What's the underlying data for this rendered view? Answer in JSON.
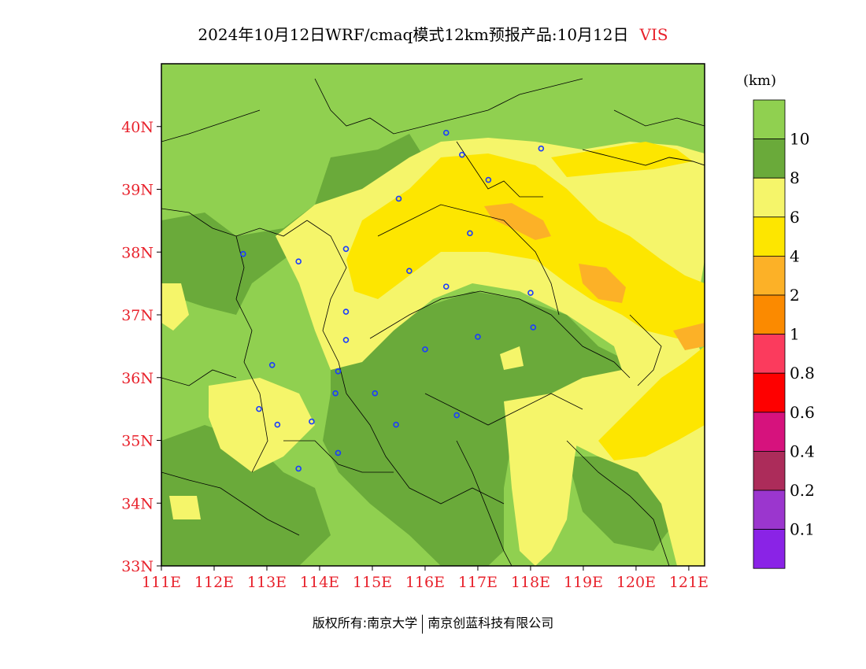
{
  "title": {
    "main": "2024年10月12日WRF/cmaq模式12km预报产品:10月12日",
    "variable": "VIS"
  },
  "axes": {
    "x_ticks": [
      "111E",
      "112E",
      "113E",
      "114E",
      "115E",
      "116E",
      "117E",
      "118E",
      "119E",
      "120E",
      "121E"
    ],
    "y_ticks": [
      "33N",
      "34N",
      "35N",
      "36N",
      "37N",
      "38N",
      "39N",
      "40N"
    ],
    "lon_range": [
      111,
      121.3
    ],
    "lat_range": [
      33,
      41
    ]
  },
  "legend": {
    "unit": "(km)",
    "entries": [
      {
        "color": "#90d050"
      },
      {
        "color": "#6aaa3a",
        "label": "10"
      },
      {
        "color": "#f5f56a",
        "label": "8"
      },
      {
        "color": "#fde600",
        "label": "6"
      },
      {
        "color": "#fcb127",
        "label": "4"
      },
      {
        "color": "#fb8a00",
        "label": "2"
      },
      {
        "color": "#fb3b5d",
        "label": "1"
      },
      {
        "color": "#fe0000",
        "label": "0.8"
      },
      {
        "color": "#d6127d",
        "label": "0.6"
      },
      {
        "color": "#ac2c5a",
        "label": "0.4"
      },
      {
        "color": "#9b36ce",
        "label": "0.2"
      },
      {
        "color": "#8a23e6",
        "label": "0.1"
      }
    ]
  },
  "cities": [
    [
      116.4,
      39.9
    ],
    [
      116.7,
      39.55
    ],
    [
      117.2,
      39.15
    ],
    [
      118.2,
      39.65
    ],
    [
      115.5,
      38.85
    ],
    [
      116.85,
      38.3
    ],
    [
      114.5,
      38.05
    ],
    [
      112.55,
      37.97
    ],
    [
      113.6,
      37.85
    ],
    [
      115.7,
      37.7
    ],
    [
      116.4,
      37.45
    ],
    [
      118.0,
      37.35
    ],
    [
      114.5,
      37.05
    ],
    [
      118.05,
      36.8
    ],
    [
      117.0,
      36.65
    ],
    [
      114.5,
      36.6
    ],
    [
      116.0,
      36.45
    ],
    [
      113.1,
      36.2
    ],
    [
      114.35,
      36.1
    ],
    [
      114.3,
      35.75
    ],
    [
      115.05,
      35.75
    ],
    [
      112.85,
      35.5
    ],
    [
      113.2,
      35.25
    ],
    [
      113.85,
      35.3
    ],
    [
      115.45,
      35.25
    ],
    [
      116.6,
      35.4
    ],
    [
      114.35,
      34.8
    ],
    [
      113.6,
      34.55
    ]
  ],
  "chart_data": {
    "type": "heatmap",
    "title": "2024年10月12日WRF/cmaq模式12km预报产品:10月12日 VIS",
    "variable": "VIS",
    "unit": "km",
    "x_range": [
      111,
      121.3
    ],
    "y_range": [
      33,
      41
    ],
    "levels": [
      0.1,
      0.2,
      0.4,
      0.6,
      0.8,
      1,
      2,
      4,
      6,
      8,
      10
    ]
  },
  "footer": {
    "left": "版权所有:南京大学",
    "right": "南京创蓝科技有限公司"
  }
}
